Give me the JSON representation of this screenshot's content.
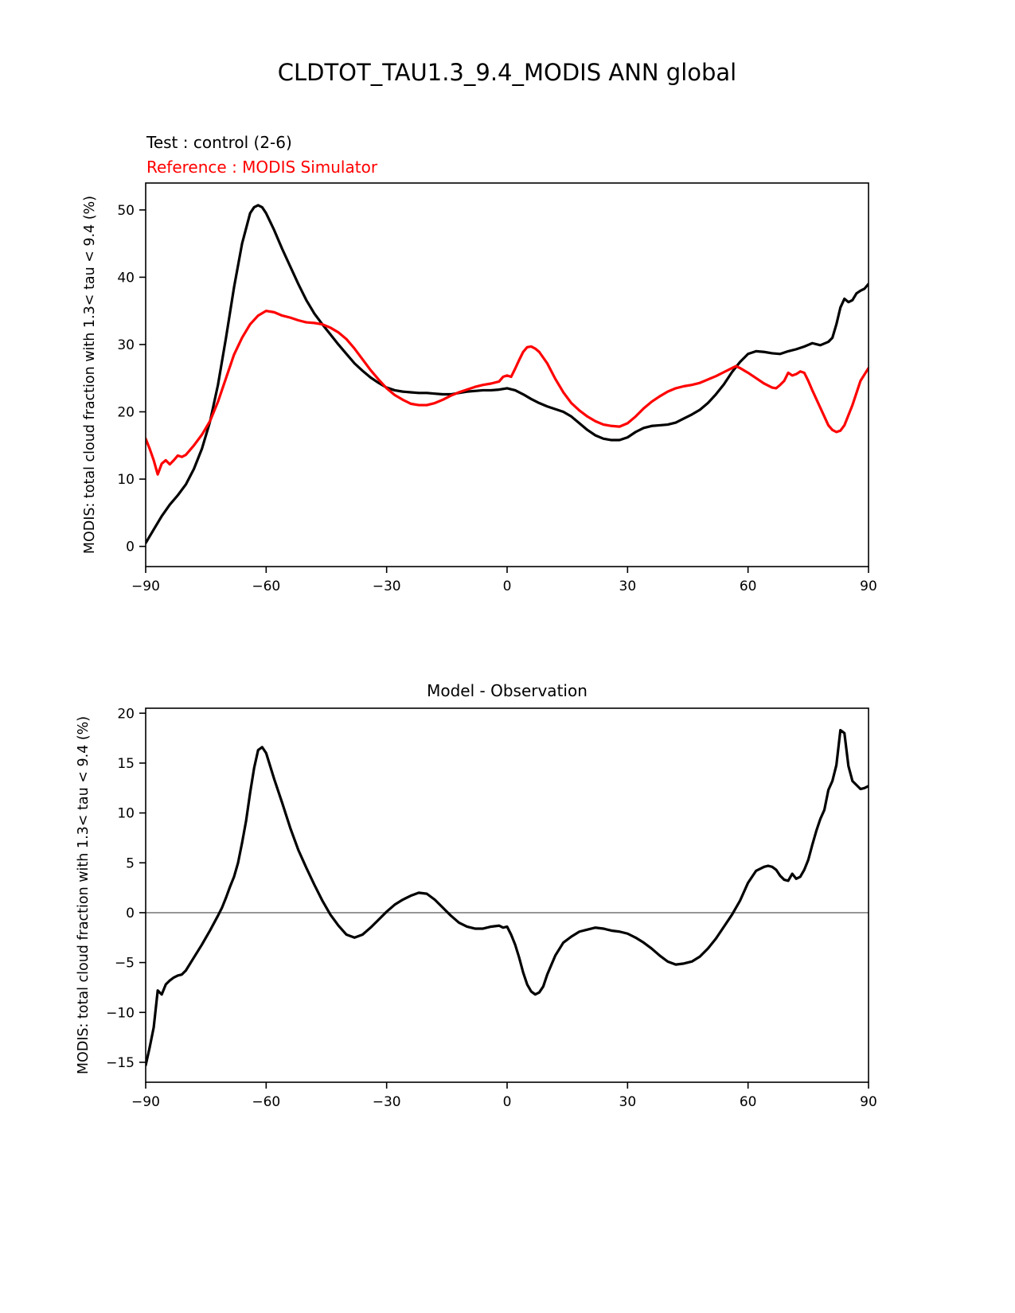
{
  "figure": {
    "title": "CLDTOT_TAU1.3_9.4_MODIS ANN global"
  },
  "top_panel": {
    "legend_test": "Test : control (2-6)",
    "legend_reference": "Reference : MODIS Simulator",
    "ylabel": "MODIS: total cloud fraction with 1.3< tau < 9.4 (%)"
  },
  "bottom_panel": {
    "title": "Model - Observation",
    "ylabel": "MODIS: total cloud fraction with 1.3< tau < 9.4 (%)"
  },
  "colors": {
    "test_line": "#000000",
    "reference_line": "#ff0000",
    "zero_line": "#808080",
    "axis": "#000000"
  },
  "chart_data": [
    {
      "type": "line",
      "title": "CLDTOT_TAU1.3_9.4_MODIS ANN global",
      "xlabel": "",
      "ylabel": "MODIS: total cloud fraction with 1.3< tau < 9.4 (%)",
      "xlim": [
        -90,
        90
      ],
      "ylim": [
        -3,
        54
      ],
      "xticks": [
        -90,
        -60,
        -30,
        0,
        30,
        60,
        90
      ],
      "yticks": [
        0,
        10,
        20,
        30,
        40,
        50
      ],
      "grid": false,
      "zero_line": false,
      "legend_position": "above-top-left",
      "series": [
        {
          "name": "Test : control (2-6)",
          "color": "#000000",
          "x": [
            -90,
            -88,
            -86,
            -84,
            -82,
            -80,
            -78,
            -76,
            -74,
            -72,
            -70,
            -68,
            -66,
            -64,
            -63,
            -62,
            -61,
            -60,
            -58,
            -56,
            -54,
            -52,
            -50,
            -48,
            -46,
            -44,
            -42,
            -40,
            -38,
            -36,
            -34,
            -32,
            -30,
            -28,
            -26,
            -24,
            -22,
            -20,
            -18,
            -16,
            -14,
            -12,
            -10,
            -8,
            -6,
            -4,
            -2,
            0,
            2,
            4,
            6,
            8,
            10,
            12,
            14,
            16,
            18,
            20,
            22,
            24,
            26,
            28,
            30,
            32,
            34,
            36,
            38,
            40,
            42,
            44,
            46,
            48,
            50,
            52,
            54,
            56,
            58,
            60,
            62,
            64,
            66,
            68,
            70,
            72,
            74,
            76,
            78,
            80,
            81,
            82,
            83,
            84,
            85,
            86,
            87,
            88,
            89,
            90
          ],
          "y": [
            0.5,
            2.5,
            4.5,
            6.2,
            7.6,
            9.2,
            11.5,
            14.5,
            18.5,
            24,
            31,
            38.5,
            45,
            49.5,
            50.4,
            50.7,
            50.4,
            49.5,
            47,
            44.2,
            41.6,
            39,
            36.6,
            34.6,
            33,
            31.5,
            30,
            28.6,
            27.2,
            26.1,
            25.1,
            24.3,
            23.6,
            23.2,
            23,
            22.9,
            22.8,
            22.8,
            22.7,
            22.6,
            22.6,
            22.8,
            23,
            23.1,
            23.2,
            23.2,
            23.3,
            23.5,
            23.2,
            22.6,
            21.9,
            21.3,
            20.8,
            20.4,
            20,
            19.3,
            18.3,
            17.3,
            16.5,
            16,
            15.8,
            15.8,
            16.2,
            17,
            17.6,
            17.9,
            18,
            18.1,
            18.4,
            19,
            19.6,
            20.3,
            21.3,
            22.6,
            24.1,
            25.9,
            27.4,
            28.6,
            29,
            28.9,
            28.7,
            28.6,
            29,
            29.3,
            29.7,
            30.2,
            29.9,
            30.4,
            31,
            33,
            35.5,
            36.8,
            36.3,
            36.6,
            37.6,
            38,
            38.3,
            39
          ]
        },
        {
          "name": "Reference : MODIS Simulator",
          "color": "#ff0000",
          "x": [
            -90,
            -89,
            -88,
            -87,
            -86,
            -85,
            -84,
            -83,
            -82,
            -81,
            -80,
            -78,
            -76,
            -74,
            -72,
            -70,
            -68,
            -66,
            -64,
            -62,
            -60,
            -58,
            -56,
            -54,
            -52,
            -50,
            -48,
            -46,
            -44,
            -42,
            -40,
            -38,
            -36,
            -34,
            -32,
            -30,
            -28,
            -26,
            -24,
            -22,
            -20,
            -18,
            -16,
            -14,
            -12,
            -10,
            -8,
            -6,
            -4,
            -2,
            -1,
            0,
            1,
            2,
            3,
            4,
            5,
            6,
            7,
            8,
            10,
            12,
            14,
            16,
            18,
            20,
            22,
            24,
            26,
            28,
            30,
            32,
            34,
            36,
            38,
            40,
            42,
            44,
            46,
            48,
            50,
            52,
            54,
            56,
            57,
            58,
            60,
            62,
            64,
            66,
            67,
            68,
            69,
            70,
            71,
            72,
            73,
            74,
            75,
            76,
            78,
            80,
            81,
            82,
            83,
            84,
            86,
            88,
            90
          ],
          "y": [
            16,
            14.5,
            12.8,
            10.7,
            12.3,
            12.8,
            12.2,
            12.8,
            13.5,
            13.3,
            13.6,
            15,
            16.6,
            18.6,
            21.5,
            25,
            28.5,
            31,
            33,
            34.3,
            35,
            34.8,
            34.3,
            34,
            33.6,
            33.3,
            33.2,
            33,
            32.5,
            31.8,
            30.8,
            29.4,
            27.8,
            26.2,
            24.8,
            23.5,
            22.5,
            21.8,
            21.2,
            21,
            21,
            21.3,
            21.8,
            22.4,
            22.9,
            23.3,
            23.7,
            24,
            24.2,
            24.5,
            25.2,
            25.4,
            25.2,
            26.4,
            27.7,
            28.9,
            29.6,
            29.7,
            29.4,
            28.9,
            27.2,
            24.9,
            22.9,
            21.3,
            20.2,
            19.3,
            18.6,
            18.1,
            17.9,
            17.8,
            18.3,
            19.3,
            20.5,
            21.5,
            22.3,
            23,
            23.5,
            23.8,
            24,
            24.3,
            24.8,
            25.3,
            25.9,
            26.5,
            26.8,
            26.5,
            25.8,
            25,
            24.2,
            23.6,
            23.5,
            24,
            24.6,
            25.8,
            25.4,
            25.6,
            26,
            25.8,
            24.6,
            23.2,
            20.6,
            18,
            17.3,
            17,
            17.2,
            18,
            21,
            24.6,
            26.5
          ]
        }
      ]
    },
    {
      "type": "line",
      "title": "Model - Observation",
      "xlabel": "",
      "ylabel": "MODIS: total cloud fraction with 1.3< tau < 9.4 (%)",
      "xlim": [
        -90,
        90
      ],
      "ylim": [
        -17,
        20.5
      ],
      "xticks": [
        -90,
        -60,
        -30,
        0,
        30,
        60,
        90
      ],
      "yticks": [
        -15,
        -10,
        -5,
        0,
        5,
        10,
        15,
        20
      ],
      "grid": false,
      "zero_line": true,
      "series": [
        {
          "name": "Model - Observation",
          "color": "#000000",
          "x": [
            -90,
            -89,
            -88,
            -87,
            -86,
            -85,
            -84,
            -83,
            -82,
            -81,
            -80,
            -78,
            -76,
            -74,
            -72,
            -71,
            -70,
            -69,
            -68,
            -67,
            -66,
            -65,
            -64,
            -63,
            -62,
            -61,
            -60,
            -58,
            -56,
            -54,
            -52,
            -50,
            -48,
            -46,
            -44,
            -42,
            -40,
            -38,
            -36,
            -34,
            -32,
            -30,
            -28,
            -26,
            -24,
            -22,
            -20,
            -18,
            -16,
            -14,
            -12,
            -10,
            -8,
            -6,
            -4,
            -2,
            -1,
            0,
            1,
            2,
            3,
            4,
            5,
            6,
            7,
            8,
            9,
            10,
            12,
            14,
            16,
            18,
            20,
            22,
            24,
            26,
            28,
            30,
            32,
            34,
            36,
            38,
            40,
            42,
            44,
            46,
            48,
            50,
            52,
            54,
            56,
            58,
            60,
            62,
            63,
            64,
            65,
            66,
            67,
            68,
            69,
            70,
            71,
            72,
            73,
            74,
            75,
            76,
            77,
            78,
            79,
            80,
            81,
            82,
            83,
            84,
            85,
            86,
            87,
            88,
            89,
            90
          ],
          "y": [
            -15.3,
            -13.5,
            -11.5,
            -7.8,
            -8.2,
            -7.2,
            -6.8,
            -6.5,
            -6.3,
            -6.2,
            -5.8,
            -4.5,
            -3.2,
            -1.8,
            -0.3,
            0.5,
            1.5,
            2.6,
            3.6,
            5,
            7,
            9.2,
            12,
            14.5,
            16.3,
            16.6,
            16,
            13.4,
            11,
            8.5,
            6.3,
            4.5,
            2.8,
            1.2,
            -0.2,
            -1.3,
            -2.2,
            -2.5,
            -2.2,
            -1.5,
            -0.7,
            0.1,
            0.8,
            1.3,
            1.7,
            2,
            1.9,
            1.3,
            0.5,
            -0.3,
            -1,
            -1.4,
            -1.6,
            -1.6,
            -1.4,
            -1.3,
            -1.5,
            -1.4,
            -2.2,
            -3.2,
            -4.5,
            -6,
            -7.2,
            -7.9,
            -8.2,
            -8,
            -7.4,
            -6.2,
            -4.3,
            -3,
            -2.4,
            -1.9,
            -1.7,
            -1.5,
            -1.6,
            -1.8,
            -1.9,
            -2.1,
            -2.5,
            -3,
            -3.6,
            -4.3,
            -4.9,
            -5.2,
            -5.1,
            -4.9,
            -4.4,
            -3.6,
            -2.6,
            -1.4,
            -0.2,
            1.2,
            3,
            4.2,
            4.4,
            4.6,
            4.7,
            4.6,
            4.3,
            3.7,
            3.3,
            3.2,
            3.9,
            3.4,
            3.6,
            4.3,
            5.3,
            6.8,
            8.2,
            9.4,
            10.3,
            12.3,
            13.2,
            14.8,
            18.3,
            18,
            14.7,
            13.2,
            12.8,
            12.4,
            12.5,
            12.7
          ]
        }
      ]
    }
  ]
}
